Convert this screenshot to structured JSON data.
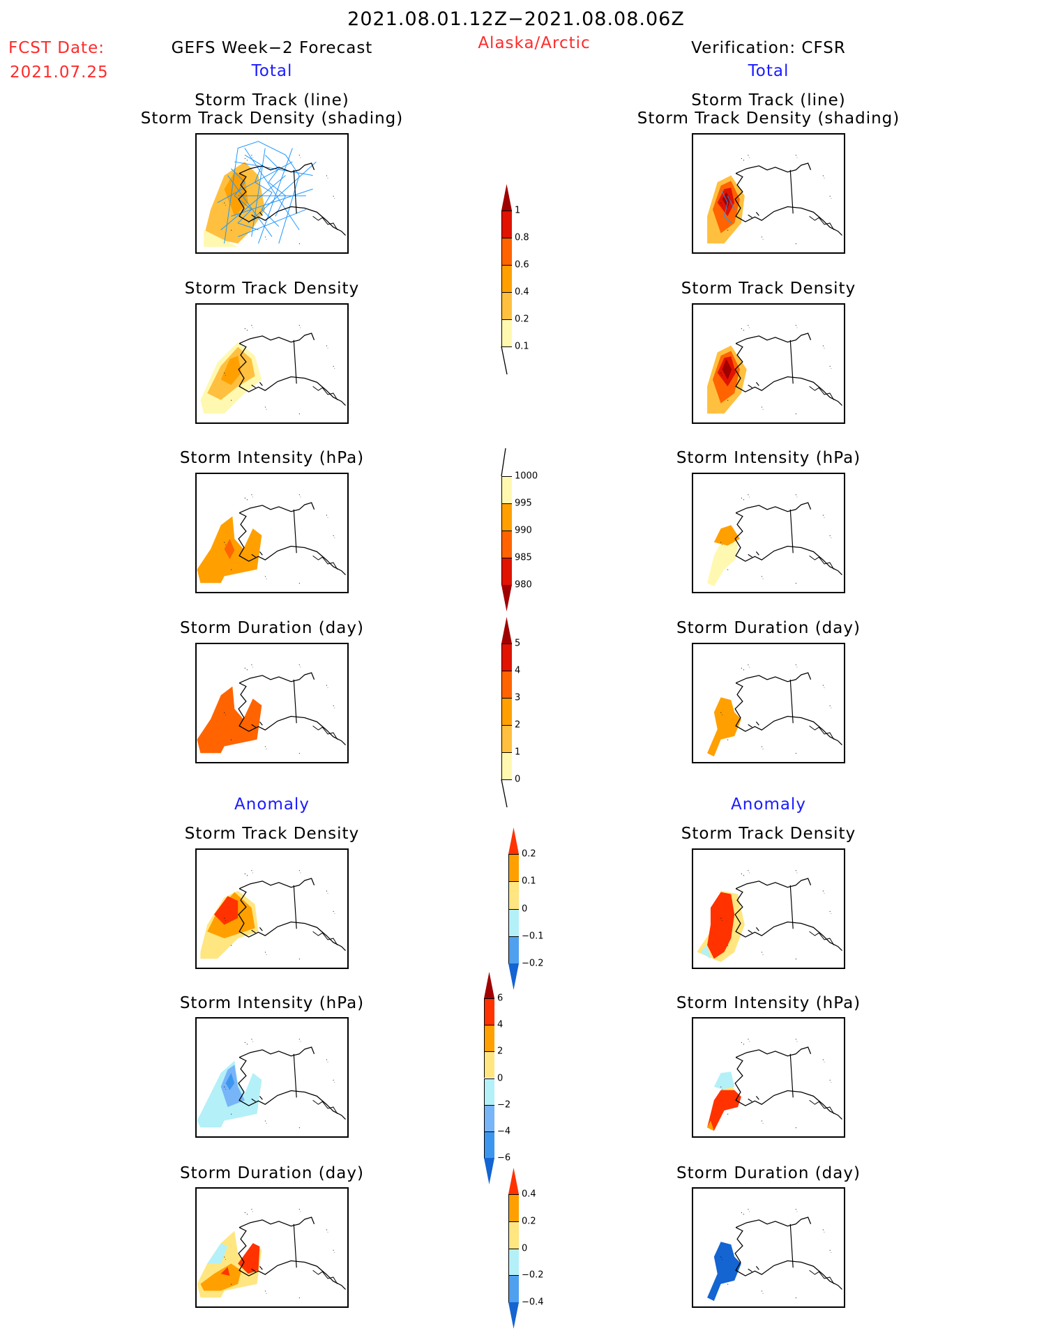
{
  "header": {
    "period": "2021.08.01.12Z−2021.08.08.06Z",
    "fcst_label": "FCST Date:",
    "fcst_date": "2021.07.25",
    "left_title": "GEFS Week−2 Forecast",
    "region": "Alaska/Arctic",
    "right_title": "Verification: CFSR",
    "total_left": "Total",
    "total_right": "Total",
    "anomaly_left": "Anomaly",
    "anomaly_right": "Anomaly"
  },
  "panel_titles": {
    "track_line": "Storm Track (line)",
    "track_shading": "Storm Track Density (shading)",
    "density": "Storm Track Density",
    "intensity": "Storm Intensity (hPa)",
    "duration": "Storm Duration (day)"
  },
  "chart_data": [
    {
      "type": "heatmap",
      "title": "Storm Track Density (Total)",
      "colorbar": {
        "labels": [
          "1",
          "0.8",
          "0.6",
          "0.4",
          "0.2",
          "0.1"
        ],
        "colors": [
          "#e01400",
          "#ff6400",
          "#ffa000",
          "#ffc040",
          "#fff8b0"
        ],
        "over": "#a00000",
        "under": null
      }
    },
    {
      "type": "heatmap",
      "title": "Storm Intensity (hPa) (Total)",
      "colorbar": {
        "labels": [
          "1000",
          "995",
          "990",
          "985",
          "980"
        ],
        "colors": [
          "#fff8b0",
          "#ffa000",
          "#ff6400",
          "#e01400"
        ],
        "over": null,
        "under": "#a00000"
      }
    },
    {
      "type": "heatmap",
      "title": "Storm Duration (day) (Total)",
      "colorbar": {
        "labels": [
          "5",
          "4",
          "3",
          "2",
          "1",
          "0"
        ],
        "colors": [
          "#e01400",
          "#ff6400",
          "#ffa000",
          "#ffc040",
          "#fff8b0"
        ],
        "over": "#a00000",
        "under": null
      }
    },
    {
      "type": "heatmap",
      "title": "Storm Track Density (Anomaly)",
      "colorbar": {
        "labels": [
          "0.2",
          "0.1",
          "0",
          "−0.1",
          "−0.2"
        ],
        "colors": [
          "#ffa000",
          "#ffe680",
          "#b4f0f8",
          "#50a0f0"
        ],
        "over": "#ff3200",
        "under": "#1464d2"
      }
    },
    {
      "type": "heatmap",
      "title": "Storm Intensity (hPa) (Anomaly)",
      "colorbar": {
        "labels": [
          "6",
          "4",
          "2",
          "0",
          "−2",
          "−4",
          "−6"
        ],
        "colors": [
          "#ff3200",
          "#ffa000",
          "#ffe680",
          "#b4f0f8",
          "#78b4f8",
          "#3c96f0"
        ],
        "over": "#a00000",
        "under": "#1464d2"
      }
    },
    {
      "type": "heatmap",
      "title": "Storm Duration (day) (Anomaly)",
      "colorbar": {
        "labels": [
          "0.4",
          "0.2",
          "0",
          "−0.2",
          "−0.4"
        ],
        "colors": [
          "#ffa000",
          "#ffe680",
          "#b4f0f8",
          "#50a0f0"
        ],
        "over": "#ff3200",
        "under": "#1464d2"
      }
    }
  ]
}
